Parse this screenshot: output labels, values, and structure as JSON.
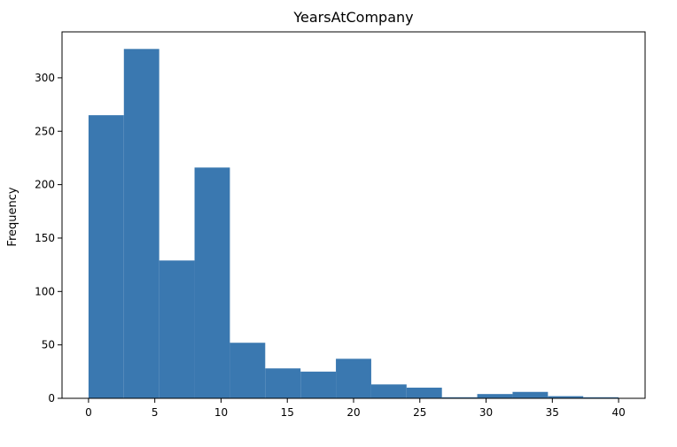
{
  "chart_data": {
    "type": "bar",
    "title": "YearsAtCompany",
    "xlabel": "",
    "ylabel": "Frequency",
    "bins": [
      {
        "x0": 0.0,
        "x1": 2.667,
        "value": 265
      },
      {
        "x0": 2.667,
        "x1": 5.333,
        "value": 327
      },
      {
        "x0": 5.333,
        "x1": 8.0,
        "value": 129
      },
      {
        "x0": 8.0,
        "x1": 10.667,
        "value": 216
      },
      {
        "x0": 10.667,
        "x1": 13.333,
        "value": 52
      },
      {
        "x0": 13.333,
        "x1": 16.0,
        "value": 28
      },
      {
        "x0": 16.0,
        "x1": 18.667,
        "value": 25
      },
      {
        "x0": 18.667,
        "x1": 21.333,
        "value": 37
      },
      {
        "x0": 21.333,
        "x1": 24.0,
        "value": 13
      },
      {
        "x0": 24.0,
        "x1": 26.667,
        "value": 10
      },
      {
        "x0": 26.667,
        "x1": 29.333,
        "value": 1
      },
      {
        "x0": 29.333,
        "x1": 32.0,
        "value": 4
      },
      {
        "x0": 32.0,
        "x1": 34.667,
        "value": 6
      },
      {
        "x0": 34.667,
        "x1": 37.333,
        "value": 2
      },
      {
        "x0": 37.333,
        "x1": 40.0,
        "value": 1
      }
    ],
    "x_ticks": [
      "0",
      "5",
      "10",
      "15",
      "20",
      "25",
      "30",
      "35",
      "40"
    ],
    "y_ticks": [
      "0",
      "50",
      "100",
      "150",
      "200",
      "250",
      "300"
    ],
    "xlim": [
      -2,
      42
    ],
    "ylim": [
      0,
      343
    ],
    "grid": false,
    "bar_color": "#3a78b0"
  }
}
